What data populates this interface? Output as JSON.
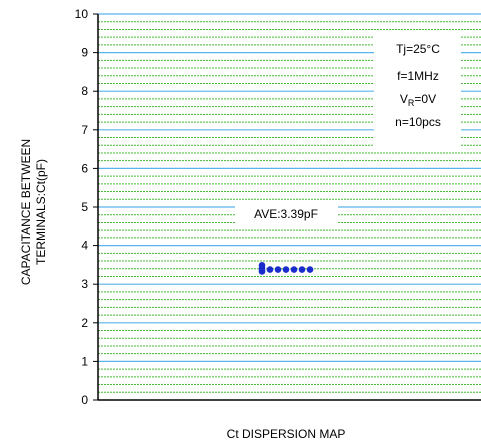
{
  "chart_data": {
    "type": "scatter",
    "title": "",
    "xlabel": "Ct DISPERSION MAP",
    "ylabel_lines": [
      "CAPACITANCE BETWEEN",
      "TERMINALS:Ct(pF)"
    ],
    "ylim": [
      0,
      10
    ],
    "yticks": [
      "0",
      "1",
      "2",
      "3",
      "4",
      "5",
      "6",
      "7",
      "8",
      "9",
      "10"
    ],
    "minor_grid_step": 0.2,
    "grid": true,
    "conditions": {
      "tj": "Tj=25°C",
      "freq": "f=1MHz",
      "vr_prefix": "V",
      "vr_sub": "R",
      "vr_suffix": "=0V",
      "n": "n=10pcs"
    },
    "average_label": "AVE:3.39pF",
    "series": [
      {
        "values": [
          3.49,
          3.42,
          3.36,
          3.33,
          3.38,
          3.38,
          3.38,
          3.38,
          3.38,
          3.38
        ],
        "offsets": [
          0,
          0,
          0,
          0,
          1,
          2,
          3,
          4,
          5,
          6
        ]
      }
    ],
    "colors": {
      "major_grid": "#5ab4ec",
      "minor_grid": "#44bb33",
      "points": "#1a2ccc",
      "axis": "#000000"
    }
  }
}
